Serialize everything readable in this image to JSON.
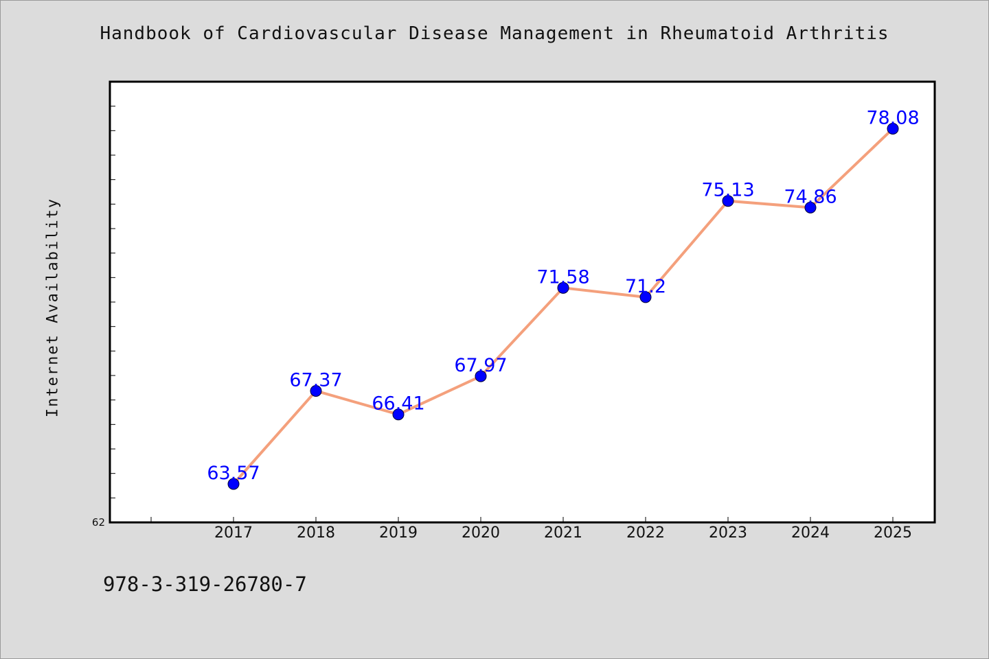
{
  "chart_data": {
    "type": "line",
    "title": "Handbook of Cardiovascular Disease Management in Rheumatoid Arthritis",
    "xlabel": "",
    "ylabel": "Internet Availability",
    "categories": [
      "2017",
      "2018",
      "2019",
      "2020",
      "2021",
      "2022",
      "2023",
      "2024",
      "2025"
    ],
    "series": [
      {
        "values": [
          63.57,
          67.37,
          66.41,
          67.97,
          71.58,
          71.2,
          75.13,
          74.86,
          78.08
        ],
        "labels": [
          "63.57",
          "67.37",
          "66.41",
          "67.97",
          "71.58",
          "71.2",
          "75.13",
          "74.86",
          "78.08"
        ]
      }
    ],
    "ylim": [
      62,
      80
    ],
    "y_tick_labels": [
      "62"
    ],
    "grid": false,
    "legend": "none",
    "colors": {
      "line": "#f4a07c",
      "marker": "#0000ff",
      "data_label": "#0000ff",
      "plot_background": "#ffffff",
      "page_background": "#dcdcdc"
    }
  },
  "footer": {
    "code": "978-3-319-26780-7"
  }
}
